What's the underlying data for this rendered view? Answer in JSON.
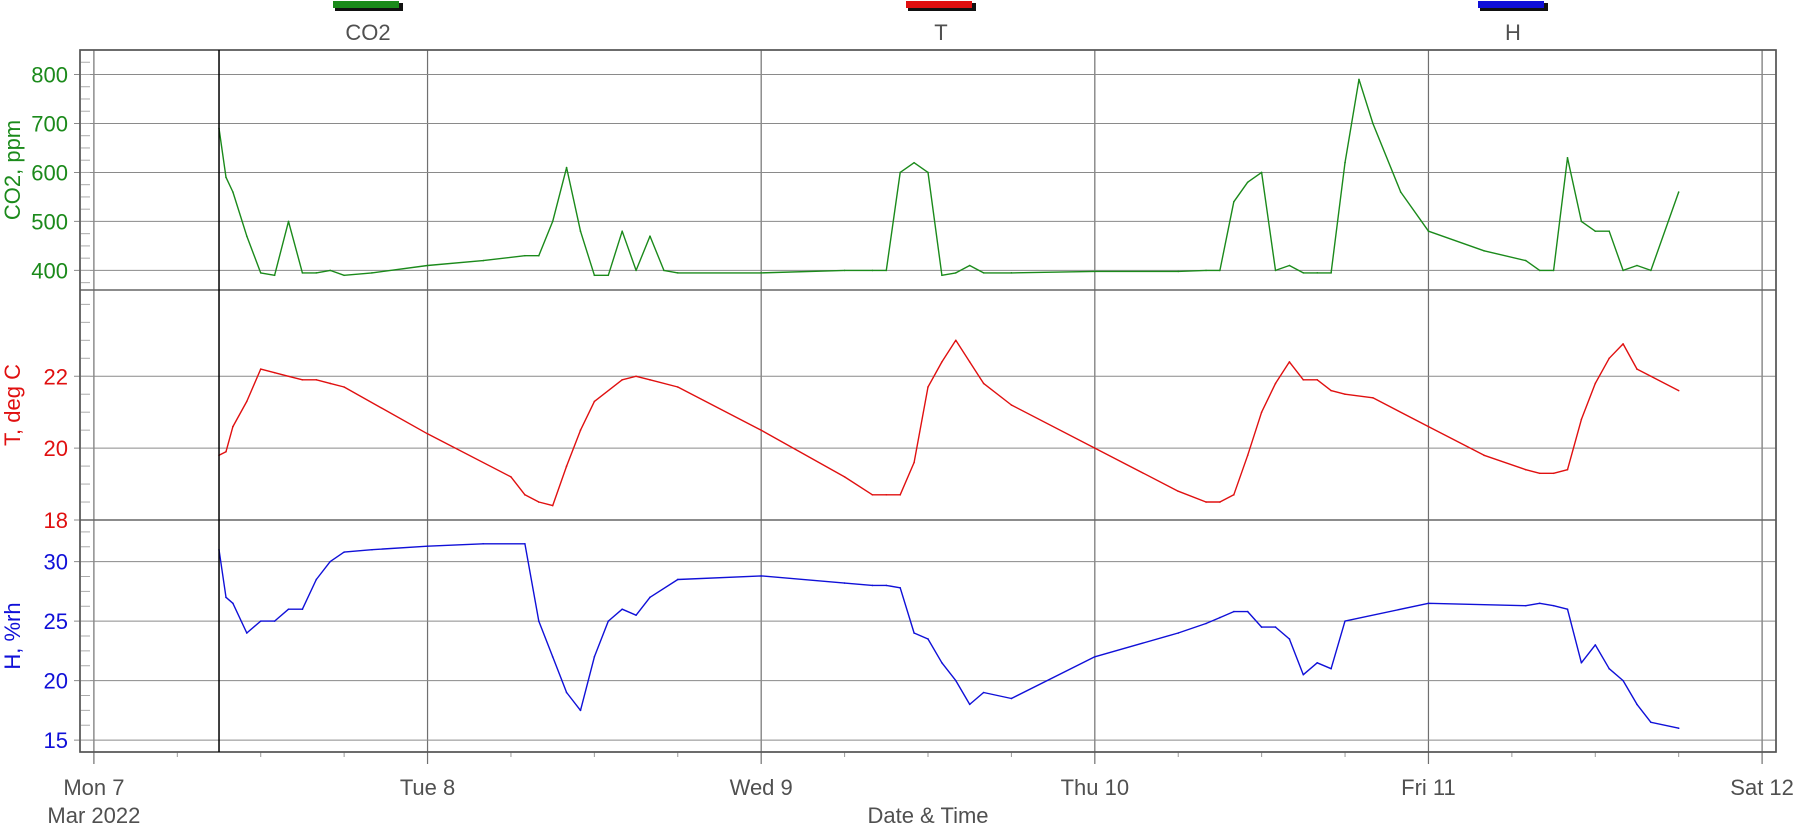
{
  "chart_data": {
    "type": "line",
    "xlabel": "Date & Time",
    "x_ticks": [
      {
        "date": "2022-03-07T00:00",
        "label": "Mon 7",
        "sublabel": "Mar 2022"
      },
      {
        "date": "2022-03-08T00:00",
        "label": "Tue 8"
      },
      {
        "date": "2022-03-09T00:00",
        "label": "Wed 9"
      },
      {
        "date": "2022-03-10T00:00",
        "label": "Thu 10"
      },
      {
        "date": "2022-03-11T00:00",
        "label": "Fri 11"
      },
      {
        "date": "2022-03-12T00:00",
        "label": "Sat 12"
      }
    ],
    "xlim": [
      "2022-03-06T23:00",
      "2022-03-12T01:00"
    ],
    "grid": true,
    "legend_placement": "top",
    "series": [
      {
        "name": "CO2",
        "color": "#1b8a1b",
        "ylabel": "CO2, ppm",
        "ylim": [
          360,
          850
        ],
        "y_ticks": [
          400,
          500,
          600,
          700,
          800
        ],
        "x": [
          "2022-03-07T09:00",
          "2022-03-07T09:30",
          "2022-03-07T10:00",
          "2022-03-07T11:00",
          "2022-03-07T12:00",
          "2022-03-07T13:00",
          "2022-03-07T14:00",
          "2022-03-07T15:00",
          "2022-03-07T16:00",
          "2022-03-07T17:00",
          "2022-03-07T18:00",
          "2022-03-07T20:00",
          "2022-03-08T00:00",
          "2022-03-08T04:00",
          "2022-03-08T07:00",
          "2022-03-08T08:00",
          "2022-03-08T09:00",
          "2022-03-08T10:00",
          "2022-03-08T11:00",
          "2022-03-08T12:00",
          "2022-03-08T13:00",
          "2022-03-08T14:00",
          "2022-03-08T15:00",
          "2022-03-08T16:00",
          "2022-03-08T17:00",
          "2022-03-08T18:00",
          "2022-03-09T00:00",
          "2022-03-09T06:00",
          "2022-03-09T08:00",
          "2022-03-09T09:00",
          "2022-03-09T10:00",
          "2022-03-09T11:00",
          "2022-03-09T12:00",
          "2022-03-09T13:00",
          "2022-03-09T14:00",
          "2022-03-09T15:00",
          "2022-03-09T16:00",
          "2022-03-09T18:00",
          "2022-03-10T00:00",
          "2022-03-10T06:00",
          "2022-03-10T08:00",
          "2022-03-10T09:00",
          "2022-03-10T10:00",
          "2022-03-10T11:00",
          "2022-03-10T12:00",
          "2022-03-10T13:00",
          "2022-03-10T14:00",
          "2022-03-10T15:00",
          "2022-03-10T16:00",
          "2022-03-10T17:00",
          "2022-03-10T18:00",
          "2022-03-10T19:00",
          "2022-03-10T20:00",
          "2022-03-10T22:00",
          "2022-03-11T00:00",
          "2022-03-11T04:00",
          "2022-03-11T07:00",
          "2022-03-11T08:00",
          "2022-03-11T09:00",
          "2022-03-11T10:00",
          "2022-03-11T11:00",
          "2022-03-11T12:00",
          "2022-03-11T13:00",
          "2022-03-11T14:00",
          "2022-03-11T15:00",
          "2022-03-11T16:00",
          "2022-03-11T18:00"
        ],
        "values": [
          690,
          590,
          560,
          470,
          395,
          390,
          500,
          395,
          395,
          400,
          390,
          395,
          410,
          420,
          430,
          430,
          500,
          610,
          480,
          390,
          390,
          480,
          400,
          470,
          400,
          395,
          395,
          400,
          400,
          400,
          600,
          620,
          600,
          390,
          395,
          410,
          395,
          395,
          398,
          398,
          400,
          400,
          540,
          580,
          600,
          400,
          410,
          395,
          395,
          395,
          620,
          790,
          700,
          560,
          480,
          440,
          420,
          400,
          400,
          630,
          500,
          480,
          480,
          400,
          410,
          400,
          560
        ]
      },
      {
        "name": "T",
        "color": "#e01010",
        "ylabel": "T, deg C",
        "ylim": [
          18,
          24.4
        ],
        "y_ticks": [
          18,
          20,
          22
        ],
        "x": [
          "2022-03-07T09:00",
          "2022-03-07T09:30",
          "2022-03-07T10:00",
          "2022-03-07T11:00",
          "2022-03-07T12:00",
          "2022-03-07T13:00",
          "2022-03-07T14:00",
          "2022-03-07T15:00",
          "2022-03-07T16:00",
          "2022-03-07T17:00",
          "2022-03-07T18:00",
          "2022-03-08T00:00",
          "2022-03-08T06:00",
          "2022-03-08T07:00",
          "2022-03-08T08:00",
          "2022-03-08T09:00",
          "2022-03-08T10:00",
          "2022-03-08T11:00",
          "2022-03-08T12:00",
          "2022-03-08T14:00",
          "2022-03-08T15:00",
          "2022-03-08T16:00",
          "2022-03-08T18:00",
          "2022-03-09T00:00",
          "2022-03-09T06:00",
          "2022-03-09T08:00",
          "2022-03-09T09:00",
          "2022-03-09T10:00",
          "2022-03-09T11:00",
          "2022-03-09T12:00",
          "2022-03-09T13:00",
          "2022-03-09T14:00",
          "2022-03-09T15:00",
          "2022-03-09T16:00",
          "2022-03-09T18:00",
          "2022-03-10T00:00",
          "2022-03-10T06:00",
          "2022-03-10T08:00",
          "2022-03-10T09:00",
          "2022-03-10T10:00",
          "2022-03-10T11:00",
          "2022-03-10T12:00",
          "2022-03-10T13:00",
          "2022-03-10T14:00",
          "2022-03-10T15:00",
          "2022-03-10T16:00",
          "2022-03-10T17:00",
          "2022-03-10T18:00",
          "2022-03-10T20:00",
          "2022-03-11T00:00",
          "2022-03-11T04:00",
          "2022-03-11T07:00",
          "2022-03-11T08:00",
          "2022-03-11T09:00",
          "2022-03-11T10:00",
          "2022-03-11T11:00",
          "2022-03-11T12:00",
          "2022-03-11T13:00",
          "2022-03-11T14:00",
          "2022-03-11T15:00",
          "2022-03-11T16:00",
          "2022-03-11T18:00"
        ],
        "values": [
          19.8,
          19.9,
          20.6,
          21.3,
          22.2,
          22.1,
          22.0,
          21.9,
          21.9,
          21.8,
          21.7,
          20.4,
          19.2,
          18.7,
          18.5,
          18.4,
          19.5,
          20.5,
          21.3,
          21.9,
          22.0,
          21.9,
          21.7,
          20.5,
          19.2,
          18.7,
          18.7,
          18.7,
          19.6,
          21.7,
          22.4,
          23.0,
          22.4,
          21.8,
          21.2,
          20.0,
          18.8,
          18.5,
          18.5,
          18.7,
          19.8,
          21.0,
          21.8,
          22.4,
          21.9,
          21.9,
          21.6,
          21.5,
          21.4,
          20.6,
          19.8,
          19.4,
          19.3,
          19.3,
          19.4,
          20.8,
          21.8,
          22.5,
          22.9,
          22.2,
          22.0,
          21.6
        ]
      },
      {
        "name": "H",
        "color": "#1010d8",
        "ylabel": "H, %rh",
        "ylim": [
          14,
          33.5
        ],
        "y_ticks": [
          15,
          20,
          25,
          30
        ],
        "x": [
          "2022-03-07T09:00",
          "2022-03-07T09:30",
          "2022-03-07T10:00",
          "2022-03-07T11:00",
          "2022-03-07T12:00",
          "2022-03-07T13:00",
          "2022-03-07T14:00",
          "2022-03-07T15:00",
          "2022-03-07T16:00",
          "2022-03-07T17:00",
          "2022-03-07T18:00",
          "2022-03-07T20:00",
          "2022-03-08T00:00",
          "2022-03-08T04:00",
          "2022-03-08T07:00",
          "2022-03-08T08:00",
          "2022-03-08T09:00",
          "2022-03-08T10:00",
          "2022-03-08T11:00",
          "2022-03-08T12:00",
          "2022-03-08T13:00",
          "2022-03-08T14:00",
          "2022-03-08T15:00",
          "2022-03-08T16:00",
          "2022-03-08T18:00",
          "2022-03-09T00:00",
          "2022-03-09T06:00",
          "2022-03-09T08:00",
          "2022-03-09T09:00",
          "2022-03-09T10:00",
          "2022-03-09T11:00",
          "2022-03-09T12:00",
          "2022-03-09T13:00",
          "2022-03-09T14:00",
          "2022-03-09T15:00",
          "2022-03-09T16:00",
          "2022-03-09T18:00",
          "2022-03-10T00:00",
          "2022-03-10T06:00",
          "2022-03-10T08:00",
          "2022-03-10T09:00",
          "2022-03-10T10:00",
          "2022-03-10T11:00",
          "2022-03-10T12:00",
          "2022-03-10T13:00",
          "2022-03-10T14:00",
          "2022-03-10T15:00",
          "2022-03-10T16:00",
          "2022-03-10T17:00",
          "2022-03-10T18:00",
          "2022-03-11T00:00",
          "2022-03-11T07:00",
          "2022-03-11T08:00",
          "2022-03-11T09:00",
          "2022-03-11T10:00",
          "2022-03-11T11:00",
          "2022-03-11T12:00",
          "2022-03-11T13:00",
          "2022-03-11T14:00",
          "2022-03-11T15:00",
          "2022-03-11T16:00",
          "2022-03-11T18:00"
        ],
        "values": [
          31,
          27,
          26.5,
          24,
          25,
          25,
          26,
          26,
          28.5,
          30,
          30.8,
          31,
          31.3,
          31.5,
          31.5,
          25,
          22,
          19,
          17.5,
          22,
          25,
          26,
          25.5,
          27,
          28.5,
          28.8,
          28.2,
          28,
          28,
          27.8,
          24,
          23.5,
          21.5,
          20,
          18,
          19,
          18.5,
          22,
          24,
          24.8,
          25.3,
          25.8,
          25.8,
          24.5,
          24.5,
          23.5,
          20.5,
          21.5,
          21,
          25,
          26.5,
          26.3,
          26.5,
          26.3,
          26,
          21.5,
          23,
          21,
          20,
          18,
          16.5,
          16
        ]
      }
    ]
  }
}
